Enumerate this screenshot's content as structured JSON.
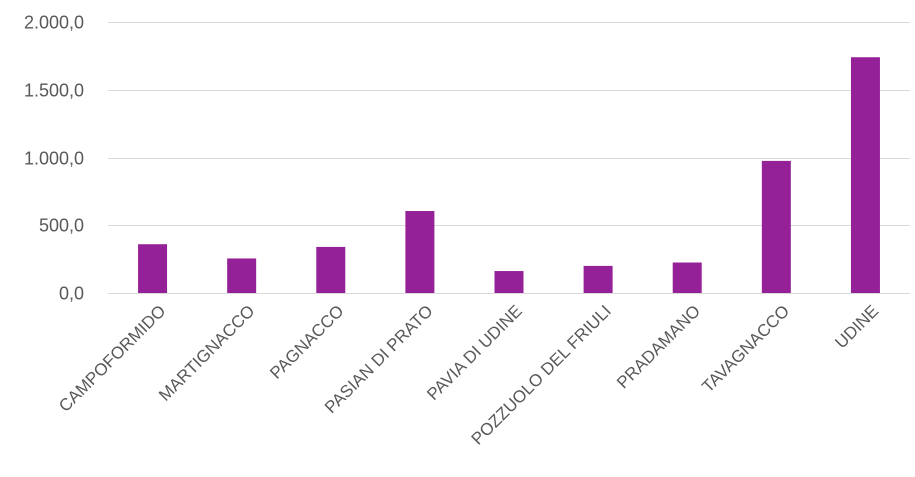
{
  "chart_data": {
    "type": "bar",
    "categories": [
      "CAMPOFORMIDO",
      "MARTIGNACCO",
      "PAGNACCO",
      "PASIAN DI PRATO",
      "PAVIA DI UDINE",
      "POZZUOLO DEL FRIULI",
      "PRADAMANO",
      "TAVAGNACCO",
      "UDINE"
    ],
    "values": [
      360,
      255,
      340,
      605,
      162,
      200,
      225,
      975,
      1740
    ],
    "y_ticks": [
      "0,0",
      "500,0",
      "1.000,0",
      "1.500,0",
      "2.000,0"
    ],
    "ylim": [
      0,
      2000
    ],
    "grid": true,
    "legend": "none",
    "bar_color": "#942197"
  }
}
